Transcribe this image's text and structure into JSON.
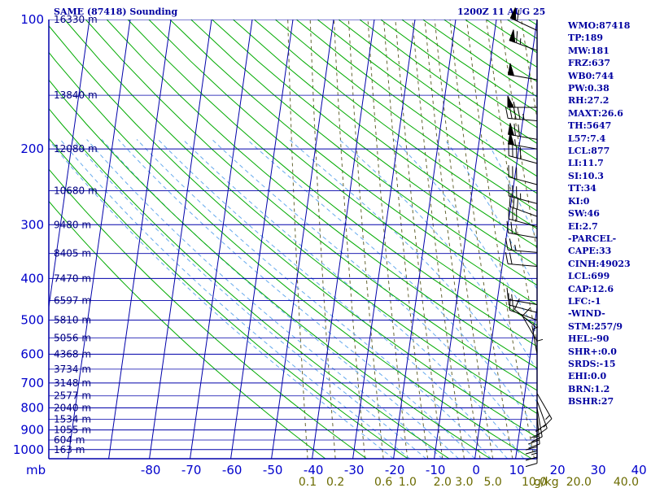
{
  "header": {
    "title": "SAME (87418) Sounding",
    "time": "1200Z 11 AUG 25"
  },
  "indices": [
    "WMO:87418",
    "TP:189",
    "MW:181",
    "FRZ:637",
    "WB0:744",
    "PW:0.38",
    "RH:27.2",
    "MAXT:26.6",
    "TH:5647",
    "L57:7.4",
    "LCL:877",
    "LI:11.7",
    "SI:10.3",
    "TT:34",
    "KI:0",
    "SW:46",
    "EI:2.7",
    "-PARCEL-",
    "CAPE:33",
    "CINH:49023",
    "LCL:699",
    "CAP:12.6",
    "LFC:-1",
    "-WIND-",
    "STM:257/9",
    "HEL:-90",
    "SHR+:0.0",
    "SRDS:-15",
    "EHI:0.0",
    "BRN:1.2",
    "BSHR:27"
  ],
  "colors": {
    "isobar": "#0000aa",
    "isotherm": "#0000aa",
    "dry_adiabat": "#00aa00",
    "moist_adiabat": "#66aaee",
    "mixing_ratio": "#666633",
    "temperature": "#cc0000",
    "dewpoint": "#005500",
    "parcel": "#0000cc",
    "wind_barb": "#000000"
  },
  "chart_data": {
    "type": "line",
    "title": "SAME (87418) Sounding",
    "pressure_ticks": [
      100,
      200,
      300,
      400,
      500,
      600,
      700,
      800,
      900,
      1000
    ],
    "pressure_unit_label": "mb",
    "temperature_ticks": [
      -80,
      -70,
      -60,
      -50,
      -40,
      -30,
      -20,
      -10,
      0,
      10,
      20,
      30,
      40
    ],
    "mixing_ratio_labels": [
      {
        "label": "0.1",
        "value": 0.1
      },
      {
        "label": "0.2",
        "value": 0.2
      },
      {
        "label": "0.6",
        "value": 0.6
      },
      {
        "label": "1.0",
        "value": 1.0
      },
      {
        "label": "2.0",
        "value": 2.0
      },
      {
        "label": "3.0",
        "value": 3.0
      },
      {
        "label": "5.0",
        "value": 5.0
      },
      {
        "label": "10.0",
        "value": 10.0
      },
      {
        "label": "20.0",
        "value": 20.0
      },
      {
        "label": "40.0",
        "value": 40.0
      }
    ],
    "mixing_ratio_unit": "g/kg",
    "height_labels": [
      {
        "p": 100,
        "label": "16330 m"
      },
      {
        "p": 150,
        "label": "13840 m"
      },
      {
        "p": 200,
        "label": "12080 m"
      },
      {
        "p": 250,
        "label": "10680 m"
      },
      {
        "p": 300,
        "label": "9480 m"
      },
      {
        "p": 350,
        "label": "8405 m"
      },
      {
        "p": 400,
        "label": "7470 m"
      },
      {
        "p": 450,
        "label": "6597 m"
      },
      {
        "p": 500,
        "label": "5810 m"
      },
      {
        "p": 550,
        "label": "5056 m"
      },
      {
        "p": 600,
        "label": "4368 m"
      },
      {
        "p": 650,
        "label": "3734 m"
      },
      {
        "p": 700,
        "label": "3148 m"
      },
      {
        "p": 750,
        "label": "2577 m"
      },
      {
        "p": 800,
        "label": "2040 m"
      },
      {
        "p": 850,
        "label": "1534 m"
      },
      {
        "p": 900,
        "label": "1055 m"
      },
      {
        "p": 950,
        "label": "604 m"
      },
      {
        "p": 1000,
        "label": "163 m"
      }
    ],
    "series": [
      {
        "role": "temperature",
        "points": [
          [
            955,
            -2.8
          ],
          [
            947,
            9.5
          ],
          [
            940,
            11.5
          ],
          [
            915,
            12.4
          ],
          [
            890,
            11.5
          ],
          [
            860,
            10.7
          ],
          [
            815,
            10.6
          ],
          [
            790,
            11.4
          ],
          [
            770,
            11.5
          ],
          [
            740,
            7.3
          ],
          [
            700,
            2.9
          ],
          [
            660,
            -1.5
          ],
          [
            600,
            -7.0
          ],
          [
            550,
            -11.8
          ],
          [
            520,
            -14.5
          ],
          [
            500,
            -16.0
          ],
          [
            470,
            -17.5
          ],
          [
            450,
            -20.0
          ],
          [
            400,
            -25.5
          ],
          [
            360,
            -30.5
          ],
          [
            300,
            -39.5
          ],
          [
            250,
            -49.0
          ],
          [
            220,
            -54.0
          ],
          [
            200,
            -58.0
          ],
          [
            185,
            -61.0
          ],
          [
            175,
            -59.5
          ],
          [
            160,
            -55.5
          ],
          [
            150,
            -53.0
          ],
          [
            130,
            -54.0
          ],
          [
            110,
            -54.5
          ],
          [
            100,
            -53.0
          ]
        ]
      },
      {
        "role": "dewpoint",
        "points": [
          [
            955,
            -0.5
          ],
          [
            940,
            -0.8
          ],
          [
            915,
            -1.5
          ],
          [
            890,
            -1.8
          ],
          [
            860,
            -5.0
          ],
          [
            820,
            -11.0
          ],
          [
            790,
            -16.0
          ],
          [
            770,
            -17.0
          ],
          [
            740,
            -14.0
          ],
          [
            700,
            -13.5
          ],
          [
            660,
            -14.5
          ],
          [
            600,
            -17.5
          ],
          [
            550,
            -20.0
          ],
          [
            500,
            -23.0
          ],
          [
            450,
            -30.0
          ],
          [
            400,
            -38.0
          ],
          [
            380,
            -39.0
          ],
          [
            330,
            -40.0
          ],
          [
            290,
            -42.0
          ],
          [
            250,
            -46.5
          ],
          [
            225,
            -52.0
          ],
          [
            200,
            -61.5
          ],
          [
            190,
            -64.0
          ],
          [
            175,
            -68.0
          ],
          [
            150,
            -74.0
          ]
        ]
      },
      {
        "role": "parcel",
        "points": [
          [
            955,
            16.2
          ],
          [
            930,
            13.1
          ],
          [
            900,
            9.5
          ],
          [
            877,
            6.8
          ],
          [
            850,
            4.6
          ],
          [
            800,
            0.1
          ],
          [
            750,
            -4.4
          ],
          [
            700,
            -8.9
          ],
          [
            650,
            -13.4
          ],
          [
            600,
            -17.6
          ],
          [
            550,
            -21.8
          ],
          [
            500,
            -26.3
          ],
          [
            450,
            -32.5
          ],
          [
            400,
            -39.5
          ],
          [
            350,
            -46.2
          ],
          [
            300,
            -53.5
          ],
          [
            250,
            -61.0
          ],
          [
            200,
            -68.5
          ]
        ]
      }
    ],
    "wind_barbs": [
      {
        "p": 106,
        "dir": 295,
        "speed": 60
      },
      {
        "p": 118,
        "dir": 290,
        "speed": 65
      },
      {
        "p": 138,
        "dir": 280,
        "speed": 50
      },
      {
        "p": 160,
        "dir": 270,
        "speed": 55
      },
      {
        "p": 172,
        "dir": 275,
        "speed": 45
      },
      {
        "p": 190,
        "dir": 280,
        "speed": 70
      },
      {
        "p": 200,
        "dir": 280,
        "speed": 55
      },
      {
        "p": 216,
        "dir": 285,
        "speed": 40
      },
      {
        "p": 242,
        "dir": 285,
        "speed": 30
      },
      {
        "p": 268,
        "dir": 285,
        "speed": 35
      },
      {
        "p": 287,
        "dir": 290,
        "speed": 30
      },
      {
        "p": 303,
        "dir": 285,
        "speed": 30
      },
      {
        "p": 322,
        "dir": 280,
        "speed": 25
      },
      {
        "p": 348,
        "dir": 275,
        "speed": 25
      },
      {
        "p": 375,
        "dir": 275,
        "speed": 20
      },
      {
        "p": 460,
        "dir": 280,
        "speed": 15
      },
      {
        "p": 480,
        "dir": 285,
        "speed": 15
      },
      {
        "p": 500,
        "dir": 290,
        "speed": 15
      },
      {
        "p": 522,
        "dir": 310,
        "speed": 10
      },
      {
        "p": 560,
        "dir": 330,
        "speed": 10
      },
      {
        "p": 600,
        "dir": 350,
        "speed": 5
      },
      {
        "p": 640,
        "dir": 0,
        "speed": 5
      },
      {
        "p": 740,
        "dir": 150,
        "speed": 15
      },
      {
        "p": 770,
        "dir": 160,
        "speed": 20
      },
      {
        "p": 800,
        "dir": 170,
        "speed": 25
      },
      {
        "p": 830,
        "dir": 175,
        "speed": 25
      },
      {
        "p": 860,
        "dir": 180,
        "speed": 20
      },
      {
        "p": 890,
        "dir": 180,
        "speed": 15
      },
      {
        "p": 920,
        "dir": 180,
        "speed": 10
      }
    ]
  }
}
